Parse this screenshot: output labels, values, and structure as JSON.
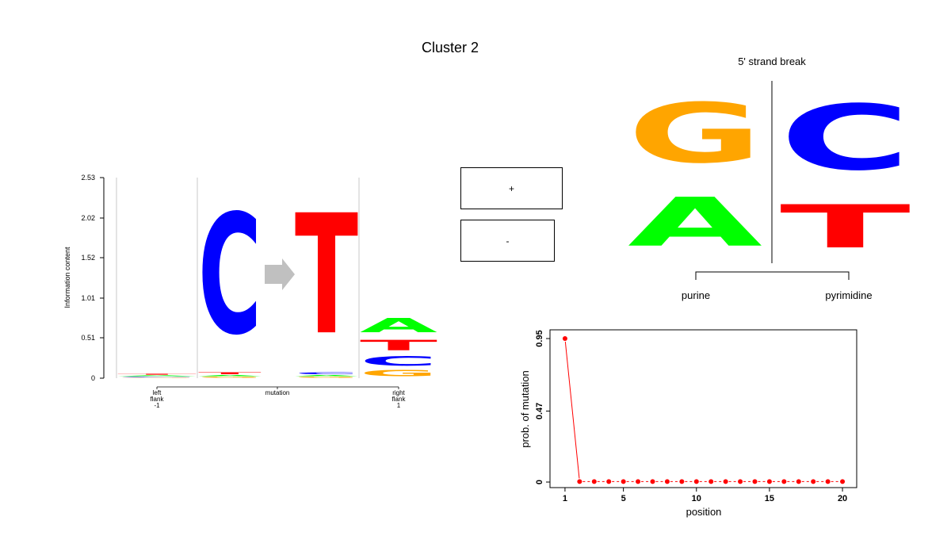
{
  "title": "Cluster 2",
  "colors": {
    "A": "#00ff00",
    "C": "#0000ff",
    "G": "#ffa500",
    "T": "#ff0000",
    "arrow": "#c0c0c0",
    "plus_box": "#17b2b2",
    "minus_box": "#f2605f",
    "point": "#ff0000"
  },
  "chart_data": [
    {
      "type": "sequence-logo",
      "ylabel": "Information content",
      "yticks": [
        "0",
        "0.51",
        "1.01",
        "1.52",
        "2.02",
        "2.53"
      ],
      "ylim": [
        0,
        2.53
      ],
      "positions": [
        {
          "label_lines": [
            "left",
            "flank",
            "-1"
          ],
          "stack": [
            {
              "base": "A",
              "height": 0.02
            },
            {
              "base": "T",
              "height": 0.02
            },
            {
              "base": "G",
              "height": 0.01
            },
            {
              "base": "C",
              "height": 0.01
            }
          ]
        },
        {
          "label_lines": [
            "mutation"
          ],
          "from_base": "C",
          "to_base": "T",
          "from_stack": [
            {
              "base": "C",
              "height": 2.43
            },
            {
              "base": "T",
              "height": 0.04
            },
            {
              "base": "G",
              "height": 0.02
            },
            {
              "base": "A",
              "height": 0.02
            }
          ],
          "to_stack": [
            {
              "base": "T",
              "height": 2.43
            },
            {
              "base": "C",
              "height": 0.04
            },
            {
              "base": "G",
              "height": 0.02
            },
            {
              "base": "A",
              "height": 0.02
            }
          ]
        },
        {
          "label_lines": [
            "right",
            "flank",
            "1"
          ],
          "stack": [
            {
              "base": "A",
              "height": 0.29
            },
            {
              "base": "T",
              "height": 0.21
            },
            {
              "base": "C",
              "height": 0.19
            },
            {
              "base": "G",
              "height": 0.12
            }
          ]
        }
      ]
    },
    {
      "type": "legend-boxes",
      "items": [
        {
          "label": "+",
          "color": "#17b2b2"
        },
        {
          "label": "-",
          "color": "#f2605f"
        }
      ]
    },
    {
      "type": "strand-logo",
      "title": "5' strand break",
      "groups": [
        {
          "label": "purine",
          "stack": [
            {
              "base": "G",
              "fraction": 0.55
            },
            {
              "base": "A",
              "fraction": 0.45
            }
          ]
        },
        {
          "label": "pyrimidine",
          "stack": [
            {
              "base": "C",
              "fraction": 0.6
            },
            {
              "base": "T",
              "fraction": 0.4
            }
          ]
        }
      ]
    },
    {
      "type": "line",
      "xlabel": "position",
      "ylabel": "prob. of mutation",
      "xticks": [
        "1",
        "5",
        "10",
        "15",
        "20"
      ],
      "yticks": [
        "0",
        "0.47",
        "0.95"
      ],
      "xlim": [
        0,
        21
      ],
      "ylim": [
        0,
        1
      ],
      "x": [
        1,
        2,
        3,
        4,
        5,
        6,
        7,
        8,
        9,
        10,
        11,
        12,
        13,
        14,
        15,
        16,
        17,
        18,
        19,
        20
      ],
      "y": [
        0.95,
        0.003,
        0.003,
        0.003,
        0.003,
        0.003,
        0.003,
        0.003,
        0.003,
        0.003,
        0.003,
        0.003,
        0.003,
        0.003,
        0.003,
        0.003,
        0.003,
        0.003,
        0.003,
        0.003
      ]
    }
  ]
}
